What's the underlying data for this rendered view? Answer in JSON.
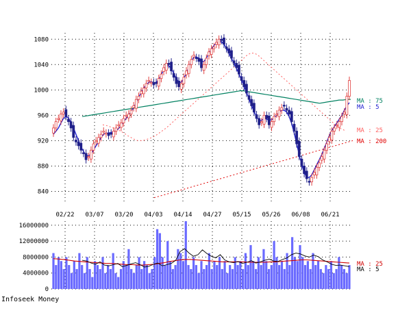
{
  "credit": "Infoseek Money",
  "colors": {
    "up": "#e04040",
    "down": "#20208a",
    "ma5": "#2020d0",
    "ma25": "#ff6060",
    "ma75": "#008060",
    "ma200": "#e00000",
    "volume_bar": "#6a6aff",
    "vol_ma25": "#d00000",
    "vol_ma5": "#000000",
    "grid": "#000000"
  },
  "chart_data": [
    {
      "type": "candlestick",
      "ylim": [
        820,
        1090
      ],
      "yticks": [
        840,
        880,
        920,
        960,
        1000,
        1040,
        1080
      ],
      "xticks": [
        "02/22",
        "03/07",
        "03/20",
        "04/03",
        "04/14",
        "04/27",
        "05/15",
        "05/26",
        "06/08",
        "06/21"
      ],
      "grid": true,
      "legend_position": "right",
      "legend": [
        {
          "label": "MA : 75",
          "color": "#008060"
        },
        {
          "label": "MA : 5",
          "color": "#2020d0"
        },
        {
          "label": "MA : 25",
          "color": "#ff6060"
        },
        {
          "label": "MA : 200",
          "color": "#e00000"
        }
      ],
      "close": [
        940,
        950,
        955,
        962,
        965,
        958,
        950,
        940,
        925,
        918,
        912,
        905,
        900,
        890,
        895,
        905,
        915,
        920,
        925,
        930,
        935,
        932,
        928,
        930,
        935,
        940,
        945,
        948,
        955,
        960,
        962,
        968,
        975,
        985,
        990,
        998,
        1003,
        1010,
        1015,
        1012,
        1008,
        1010,
        1018,
        1025,
        1035,
        1042,
        1040,
        1030,
        1020,
        1010,
        1005,
        1010,
        1020,
        1030,
        1040,
        1048,
        1055,
        1050,
        1045,
        1035,
        1040,
        1050,
        1060,
        1065,
        1068,
        1075,
        1080,
        1078,
        1072,
        1065,
        1058,
        1050,
        1042,
        1035,
        1025,
        1015,
        1005,
        995,
        985,
        975,
        965,
        955,
        945,
        950,
        960,
        955,
        945,
        950,
        958,
        962,
        968,
        972,
        975,
        968,
        962,
        950,
        935,
        915,
        895,
        880,
        868,
        860,
        855,
        862,
        870,
        878,
        885,
        895,
        905,
        915,
        925,
        935,
        940,
        945,
        950,
        958,
        965,
        990,
        1015
      ],
      "ma5": [
        930,
        935,
        940,
        948,
        955,
        958,
        956,
        948,
        940,
        930,
        920,
        910,
        903,
        897,
        896,
        899,
        905,
        912,
        918,
        925,
        930,
        932,
        932,
        933,
        934,
        936,
        939,
        944,
        950,
        955,
        960,
        966,
        972,
        980,
        988,
        996,
        1003,
        1008,
        1012,
        1013,
        1011,
        1012,
        1016,
        1024,
        1032,
        1038,
        1038,
        1034,
        1026,
        1018,
        1012,
        1012,
        1018,
        1026,
        1036,
        1045,
        1052,
        1052,
        1050,
        1045,
        1045,
        1050,
        1058,
        1064,
        1070,
        1074,
        1076,
        1076,
        1072,
        1066,
        1058,
        1050,
        1042,
        1034,
        1025,
        1016,
        1006,
        996,
        986,
        976,
        966,
        958,
        952,
        952,
        955,
        954,
        952,
        953,
        956,
        960,
        965,
        968,
        968,
        965,
        958,
        947,
        932,
        915,
        898,
        883,
        870,
        862,
        862,
        866,
        874,
        882,
        890,
        898,
        908,
        918,
        928,
        936,
        942,
        948,
        954,
        960,
        968,
        975,
        980
      ],
      "ma25": [
        945,
        944,
        942,
        940,
        938,
        935,
        932,
        928,
        925,
        922,
        920,
        920,
        921,
        923,
        925,
        928,
        932,
        936,
        940,
        945,
        950,
        955,
        960,
        965,
        970,
        975,
        980,
        985,
        990,
        995,
        1000,
        1005,
        1010,
        1015,
        1020,
        1025,
        1030,
        1035,
        1040,
        1045,
        1050,
        1055,
        1058,
        1058,
        1055,
        1050,
        1045,
        1040,
        1035,
        1030,
        1025,
        1020,
        1015,
        1010,
        1005,
        1000,
        995,
        990,
        985,
        980,
        975,
        970,
        965,
        960,
        955,
        950,
        945,
        940,
        938,
        935
      ],
      "ma75": [
        958,
        959,
        960,
        961,
        962,
        963,
        964,
        965,
        966,
        967,
        968,
        969,
        970,
        971,
        972,
        973,
        974,
        975,
        976,
        977,
        978,
        979,
        980,
        981,
        982,
        983,
        984,
        985,
        986,
        987,
        988,
        989,
        990,
        991,
        992,
        993,
        994,
        995,
        996,
        997,
        998,
        999,
        998,
        997,
        996,
        995,
        994,
        993,
        992,
        991,
        990,
        989,
        988,
        987,
        986,
        985,
        984,
        983,
        982,
        981,
        980,
        979,
        980,
        981,
        982,
        983,
        984,
        984,
        985,
        985
      ],
      "ma200": [
        830,
        835,
        840,
        845,
        850,
        855,
        860,
        865,
        870,
        875,
        880,
        885,
        890,
        895,
        900,
        905,
        910,
        915,
        920
      ]
    },
    {
      "type": "bar",
      "ylim": [
        0,
        17000000
      ],
      "yticks": [
        0,
        4000000,
        8000000,
        12000000,
        16000000
      ],
      "legend": [
        {
          "label": "MA : 25",
          "color": "#d00000"
        },
        {
          "label": "MA : 5",
          "color": "#000000"
        }
      ],
      "volume": [
        9000000,
        6000000,
        8000000,
        7000000,
        5000000,
        8000000,
        6000000,
        4000000,
        7000000,
        5000000,
        9000000,
        6000000,
        4000000,
        8000000,
        5000000,
        3000000,
        7000000,
        6000000,
        5000000,
        8000000,
        4000000,
        6000000,
        5000000,
        9000000,
        4000000,
        3000000,
        5000000,
        7000000,
        6000000,
        10000000,
        5000000,
        4000000,
        6000000,
        8000000,
        5000000,
        7000000,
        6000000,
        4000000,
        5000000,
        8000000,
        15000000,
        14000000,
        8000000,
        6000000,
        12000000,
        7000000,
        5000000,
        6000000,
        10000000,
        9000000,
        7000000,
        17000000,
        6000000,
        5000000,
        8000000,
        6000000,
        4000000,
        7000000,
        5000000,
        6000000,
        9000000,
        5000000,
        7000000,
        6000000,
        8000000,
        5000000,
        7000000,
        4000000,
        6000000,
        5000000,
        8000000,
        6000000,
        7000000,
        5000000,
        9000000,
        6000000,
        11000000,
        7000000,
        5000000,
        8000000,
        6000000,
        10000000,
        7000000,
        5000000,
        6000000,
        12000000,
        8000000,
        6000000,
        7000000,
        5000000,
        9000000,
        6000000,
        13000000,
        8000000,
        7000000,
        11000000,
        8000000,
        6000000,
        7000000,
        5000000,
        9000000,
        6000000,
        7000000,
        5000000,
        4000000,
        6000000,
        5000000,
        7000000,
        4000000,
        5000000,
        8000000,
        6000000,
        5000000,
        4000000,
        6000000
      ],
      "ma25": [
        7600000,
        7500000,
        7400000,
        7200000,
        7000000,
        6900000,
        6800000,
        6700000,
        6600000,
        6500000,
        6400000,
        6400000,
        6300000,
        6200000,
        6100000,
        6100000,
        6000000,
        6000000,
        6100000,
        6200000,
        6400000,
        6600000,
        6900000,
        7100000,
        7300000,
        7400000,
        7400000,
        7300000,
        7200000,
        7100000,
        7000000,
        6900000,
        6800000,
        6800000,
        6800000,
        6800000,
        6800000,
        6700000,
        6700000,
        6700000,
        6700000,
        6800000,
        6800000,
        6900000,
        7000000,
        7100000,
        7200000,
        7300000,
        7300000,
        7200000,
        7100000,
        7000000,
        6900000,
        6800000,
        6700000,
        6600000,
        6500000
      ],
      "ma5": [
        7200000,
        7000000,
        6500000,
        6200000,
        6800000,
        6000000,
        5800000,
        6100000,
        6400000,
        5600000,
        5900000,
        6300000,
        6600000,
        6100000,
        5500000,
        5700000,
        6200000,
        6500000,
        5800000,
        6100000,
        6400000,
        7200000,
        9400000,
        10100000,
        9000000,
        8200000,
        8600000,
        9800000,
        8900000,
        8200000,
        7800000,
        8600000,
        7300000,
        6800000,
        6600000,
        6900000,
        6400000,
        6700000,
        7100000,
        6500000,
        6800000,
        7200000,
        7500000,
        7000000,
        6900000,
        7400000,
        7800000,
        8600000,
        9000000,
        8800000,
        8300000,
        8000000,
        8500000,
        8100000,
        7300000,
        6800000,
        6200000,
        5900000,
        6000000,
        5800000,
        5600000
      ]
    }
  ]
}
